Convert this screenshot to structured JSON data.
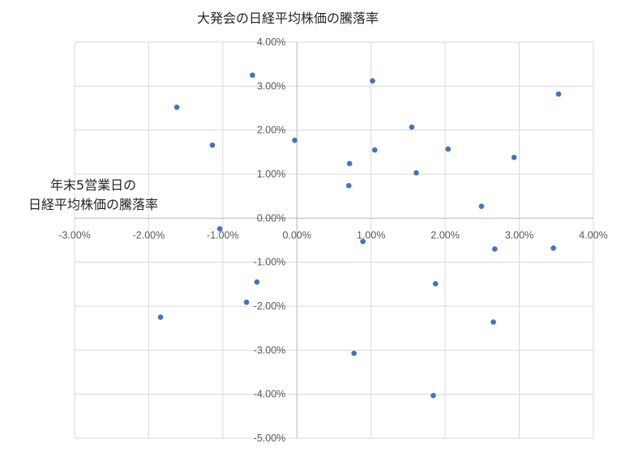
{
  "chart_data": {
    "type": "scatter",
    "title": "大発会の日経平均株価の騰落率",
    "xlabel": "",
    "ylabel_lines": [
      "年末5営業日の",
      "日経平均株価の騰落率"
    ],
    "xlim": [
      -3.0,
      4.0
    ],
    "ylim": [
      -5.0,
      4.0
    ],
    "x_ticks": [
      {
        "value": -3.0,
        "label": "-3.00%"
      },
      {
        "value": -2.0,
        "label": "-2.00%"
      },
      {
        "value": -1.0,
        "label": "-1.00%"
      },
      {
        "value": 0.0,
        "label": "0.00%"
      },
      {
        "value": 1.0,
        "label": "1.00%"
      },
      {
        "value": 2.0,
        "label": "2.00%"
      },
      {
        "value": 3.0,
        "label": "3.00%"
      },
      {
        "value": 4.0,
        "label": "4.00%"
      }
    ],
    "y_ticks": [
      {
        "value": 4.0,
        "label": "4.00%"
      },
      {
        "value": 3.0,
        "label": "3.00%"
      },
      {
        "value": 2.0,
        "label": "2.00%"
      },
      {
        "value": 1.0,
        "label": "1.00%"
      },
      {
        "value": 0.0,
        "label": "0.00%"
      },
      {
        "value": -1.0,
        "label": "-1.00%"
      },
      {
        "value": -2.0,
        "label": "-2.00%"
      },
      {
        "value": -3.0,
        "label": "-3.00%"
      },
      {
        "value": -4.0,
        "label": "-4.00%"
      },
      {
        "value": -5.0,
        "label": "-5.00%"
      }
    ],
    "grid": true,
    "marker_color": "#4472C4",
    "points": [
      {
        "x": -1.62,
        "y": 2.52
      },
      {
        "x": -0.6,
        "y": 3.25
      },
      {
        "x": -1.14,
        "y": 1.66
      },
      {
        "x": -0.03,
        "y": 1.77
      },
      {
        "x": 1.02,
        "y": 3.12
      },
      {
        "x": 3.53,
        "y": 2.82
      },
      {
        "x": 1.55,
        "y": 2.07
      },
      {
        "x": 1.05,
        "y": 1.55
      },
      {
        "x": 2.04,
        "y": 1.57
      },
      {
        "x": 2.93,
        "y": 1.38
      },
      {
        "x": 0.71,
        "y": 1.24
      },
      {
        "x": 1.61,
        "y": 1.03
      },
      {
        "x": 0.7,
        "y": 0.74
      },
      {
        "x": 2.49,
        "y": 0.27
      },
      {
        "x": -1.04,
        "y": -0.24
      },
      {
        "x": 0.89,
        "y": -0.53
      },
      {
        "x": 2.67,
        "y": -0.7
      },
      {
        "x": 3.46,
        "y": -0.68
      },
      {
        "x": -0.54,
        "y": -1.45
      },
      {
        "x": 1.87,
        "y": -1.49
      },
      {
        "x": -0.68,
        "y": -1.91
      },
      {
        "x": -1.84,
        "y": -2.25
      },
      {
        "x": 2.65,
        "y": -2.36
      },
      {
        "x": 0.77,
        "y": -3.07
      },
      {
        "x": 1.84,
        "y": -4.03
      }
    ]
  }
}
